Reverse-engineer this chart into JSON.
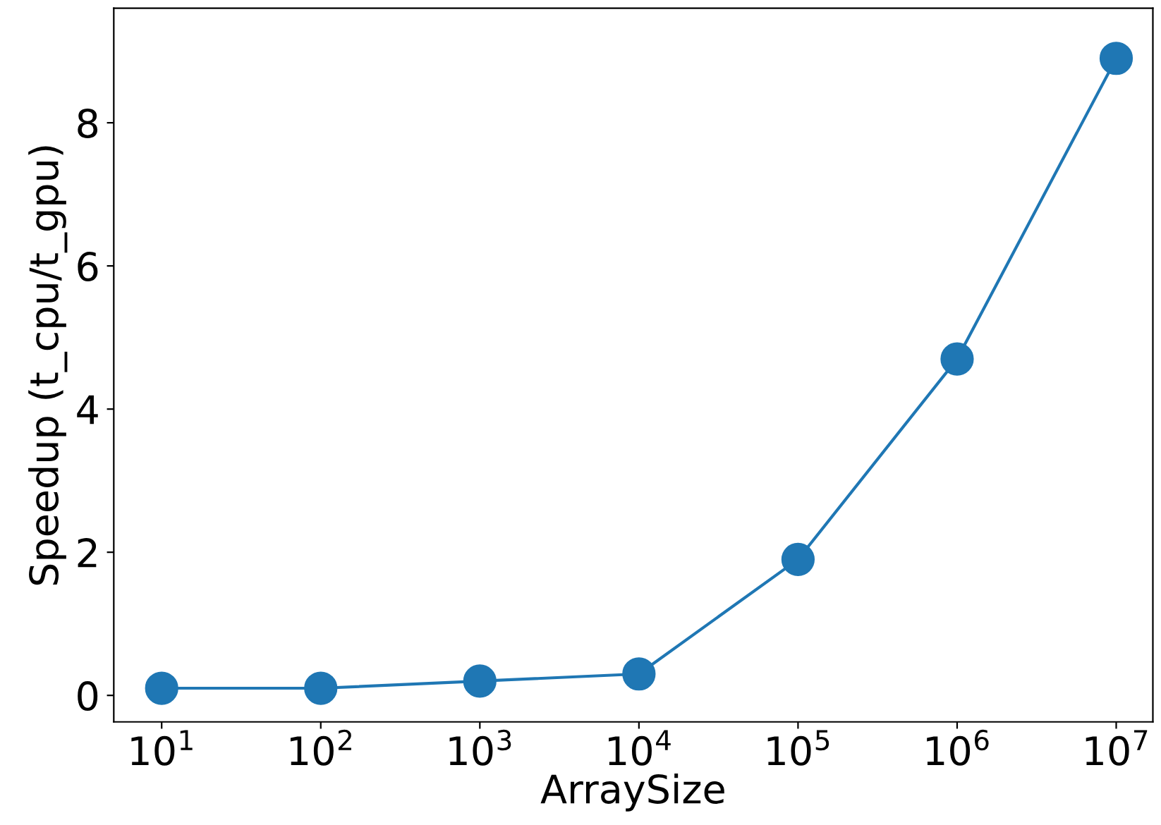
{
  "chart_data": {
    "type": "line",
    "xlabel": "ArraySize",
    "ylabel": "Speedup (t_cpu/t_gpu)",
    "log": "x",
    "x": [
      10,
      100,
      1000,
      10000,
      100000,
      1000000,
      10000000
    ],
    "series": [
      {
        "color": "#1f77b4",
        "values": [
          0.1,
          0.1,
          0.2,
          0.3,
          1.9,
          4.7,
          8.9
        ]
      }
    ],
    "marker": "circle",
    "line_style": "solid",
    "grid": false,
    "legend": false,
    "xlim": [
      5,
      17000000
    ],
    "ylim": [
      -0.37,
      9.6
    ],
    "xticks": [
      {
        "value": 10,
        "label": "10$^{1}$"
      },
      {
        "value": 100,
        "label": "10$^{2}$"
      },
      {
        "value": 1000,
        "label": "10$^{3}$"
      },
      {
        "value": 10000,
        "label": "10$^{4}$"
      },
      {
        "value": 100000,
        "label": "10$^{5}$"
      },
      {
        "value": 1000000,
        "label": "10$^{6}$"
      },
      {
        "value": 10000000,
        "label": "10$^{7}$"
      }
    ],
    "yticks": [
      0,
      2,
      4,
      6,
      8
    ]
  }
}
